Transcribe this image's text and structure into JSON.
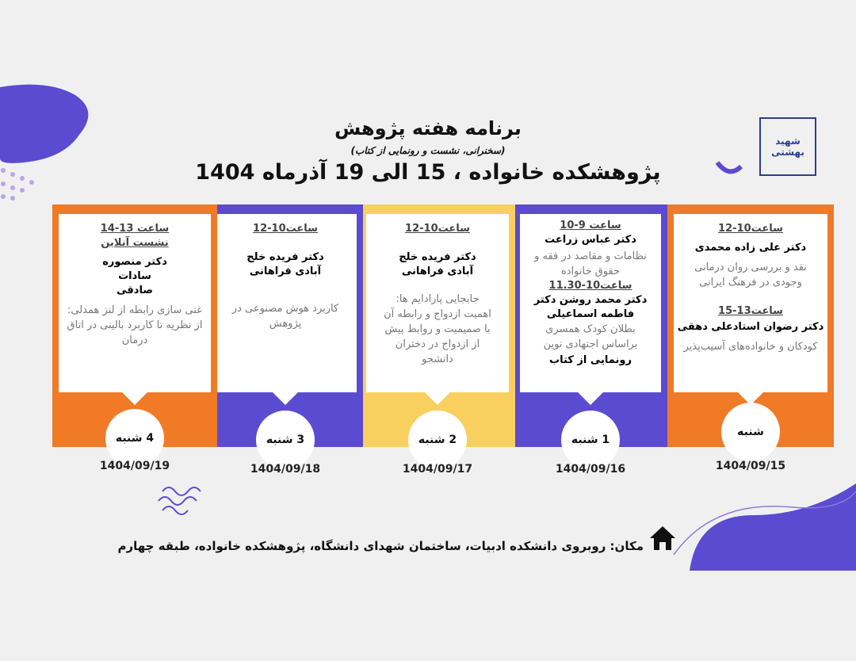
{
  "header": {
    "title": "برنامه هفته پژوهش",
    "subtitle": "(سخنرانی، نشست و رونمایی از کتاب)",
    "headline": "پژوهشکده خانواده ، 15 الی 19 آذرماه 1404"
  },
  "colors": {
    "orange": "#f07a25",
    "purple": "#5b4bd1",
    "yellow": "#f9cf5f"
  },
  "days": [
    {
      "day": "شنبه",
      "date": "1404/09/15",
      "sessions": [
        {
          "time": "ساعت10-12",
          "name": "دکتر علی زاده محمدی",
          "desc": "نقد و بررسی روان درمانی وجودی در فرهنگ ایرانی"
        },
        {
          "time": "ساعت13-15",
          "name": "دکتر رضوان استادعلی دهقی",
          "desc": "کودکان و خانواده‌های آسیب‌پذیر"
        }
      ]
    },
    {
      "day": "1 شنبه",
      "date": "1404/09/16",
      "sessions": [
        {
          "time": "ساعت 9-10",
          "name": "دکتر عباس زراعت",
          "desc": "نظامات و مقاصد در فقه و حقوق خانواده"
        },
        {
          "time": "ساعت10-11.30",
          "name": "دکتر محمد روشن دکتر فاطمه اسماعیلی",
          "desc": "بطلان کودک همسری براساس اجتهادی نوین",
          "extra": "رونمایی از کتاب"
        }
      ]
    },
    {
      "day": "2 شنبه",
      "date": "1404/09/17",
      "sessions": [
        {
          "time": "ساعت10-12",
          "name": "دکتر فریده خلج آبادی فراهانی",
          "desc": "جابجایی پارادایم ها: اهمیت ازدواج و رابطه آن با صمیمیت و روابط پیش از ازدواج در دختران دانشجو"
        }
      ]
    },
    {
      "day": "3 شنبه",
      "date": "1404/09/18",
      "sessions": [
        {
          "time": "ساعت10-12",
          "name": "دکتر فریده خلج آبادی فراهانی",
          "desc": "کاربرد هوش مصنوعی در پژوهش"
        }
      ]
    },
    {
      "day": "4 شنبه",
      "date": "1404/09/19",
      "sessions": [
        {
          "time": "ساعت 13-14 نشست آنلاین",
          "name": "دکتر منصوره سادات صادقی",
          "desc": "غنی سازی رابطه از لنز همدلی: از نظریه تا کاربرد بالینی در اتاق درمان"
        }
      ]
    }
  ],
  "location": "مکان: روبروی دانشکده ادبیات، ساختمان شهدای دانشگاه، پژوهشکده خانواده، طبقه چهارم",
  "logo": "دانشگاه شهید بهشتی"
}
